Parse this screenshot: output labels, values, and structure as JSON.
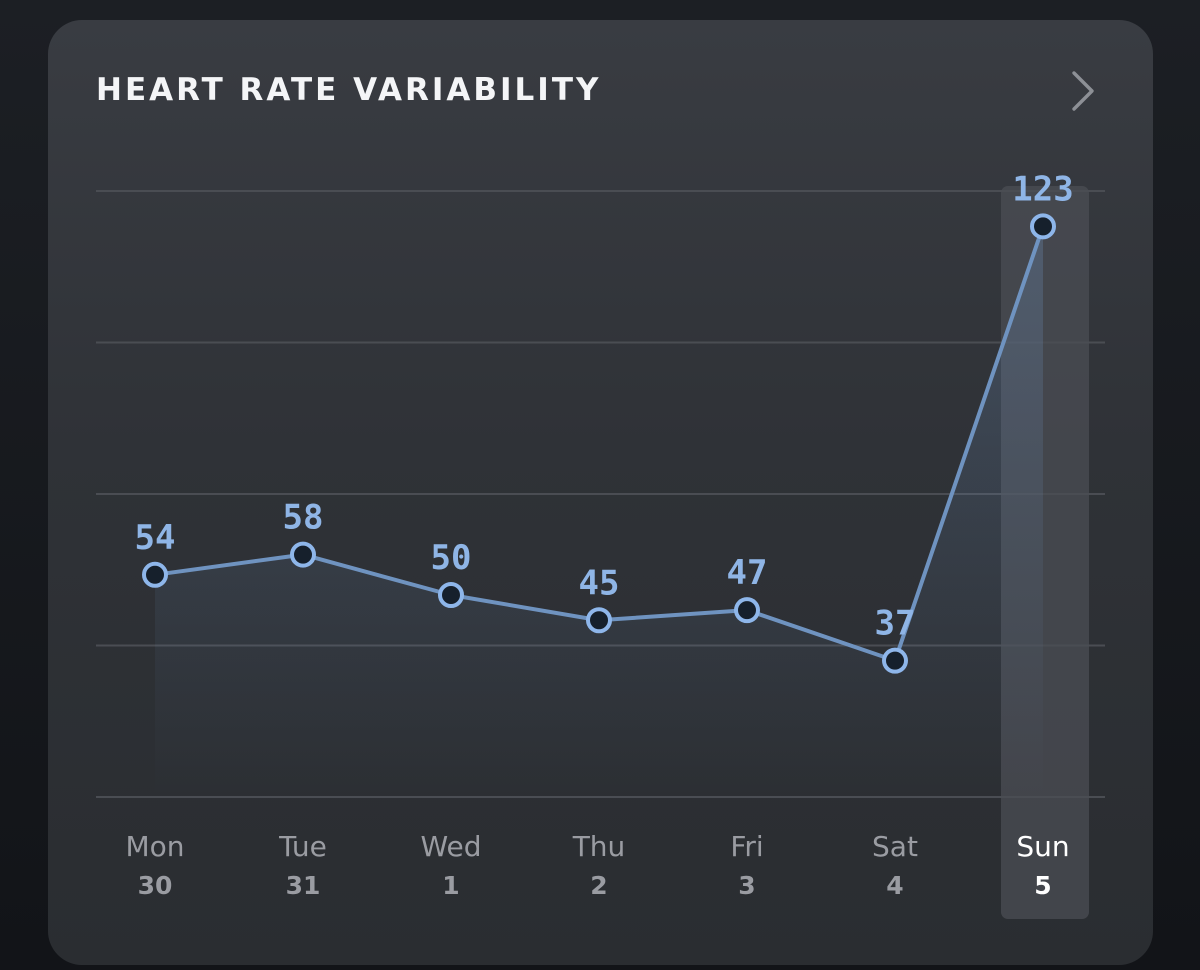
{
  "card": {
    "title": "HEART RATE VARIABILITY",
    "chevron_icon": "chevron-right-icon"
  },
  "colors": {
    "line": "#6f93c0",
    "point_stroke": "#8eb6ea",
    "point_fill": "#16202c",
    "value_text": "#8fb5e6",
    "day_text": "#9a9ca2",
    "day_text_selected": "#ffffff",
    "grid": "#4a4d53",
    "highlight": "#4b4e54"
  },
  "chart_data": {
    "type": "line",
    "categories": [
      "Mon",
      "Tue",
      "Wed",
      "Thu",
      "Fri",
      "Sat",
      "Sun"
    ],
    "dates": [
      "30",
      "31",
      "1",
      "2",
      "3",
      "4",
      "5"
    ],
    "values": [
      54,
      58,
      50,
      45,
      47,
      37,
      123
    ],
    "data_labels": [
      "54",
      "58",
      "50",
      "45",
      "47",
      "37",
      "123"
    ],
    "selected_index": 6,
    "ylim": [
      10,
      150
    ],
    "grid": true,
    "title": "HEART RATE VARIABILITY",
    "xlabel": "",
    "ylabel": ""
  }
}
